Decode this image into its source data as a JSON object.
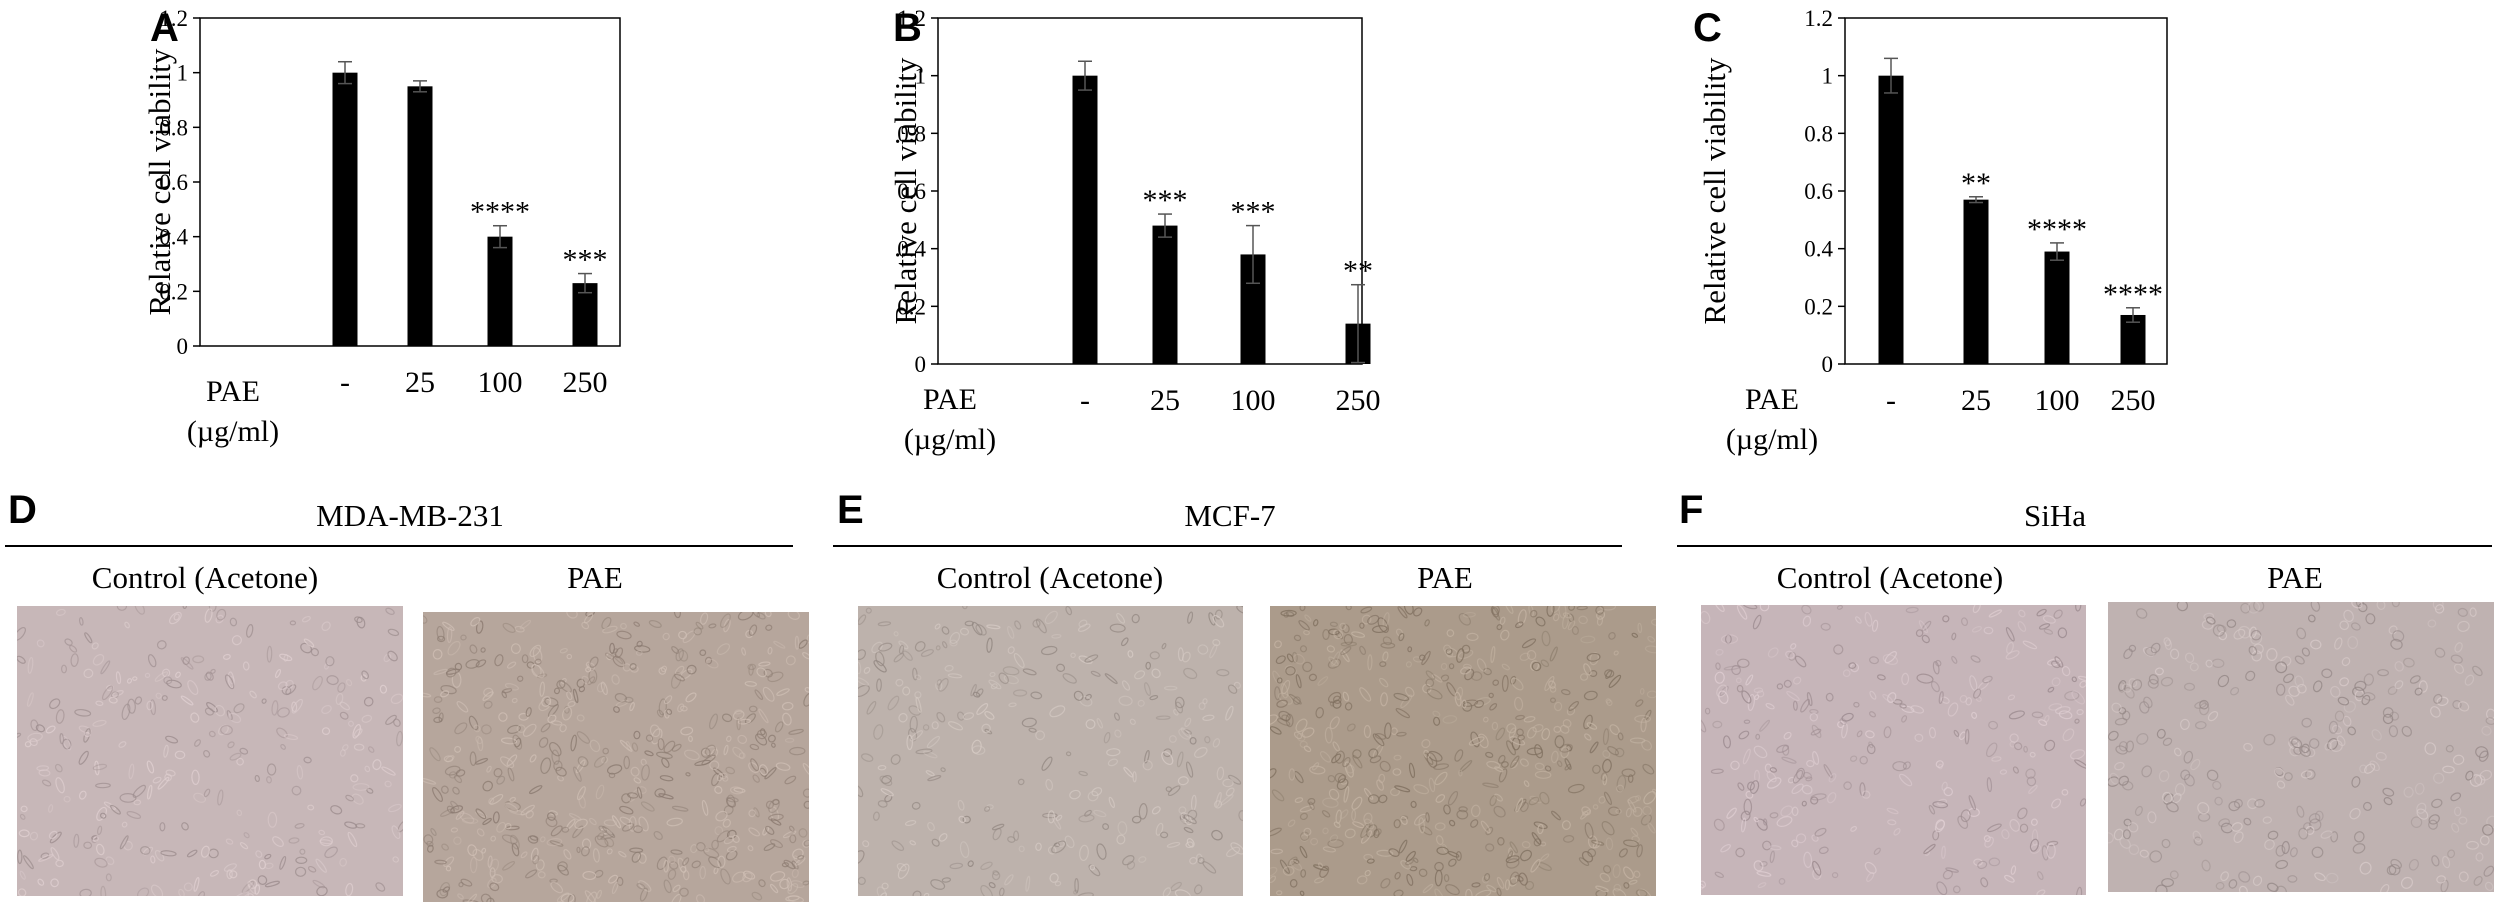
{
  "panel_letters": {
    "a": "A",
    "b": "B",
    "c": "C",
    "d": "D",
    "e": "E",
    "f": "F"
  },
  "x_axis_header": {
    "label": "PAE",
    "unit": "(µg/ml)"
  },
  "chart_data": [
    {
      "type": "bar",
      "panel": "A",
      "categories": [
        "-",
        "25",
        "100",
        "250"
      ],
      "values": [
        1.0,
        0.95,
        0.4,
        0.23
      ],
      "errors": [
        0.04,
        0.02,
        0.04,
        0.035
      ],
      "significance": [
        "",
        "",
        "****",
        "***"
      ],
      "ylabel": "Relative cell viability",
      "xlabel": "PAE (µg/ml)",
      "ylim": [
        0,
        1.2
      ],
      "yticks": [
        0,
        0.2,
        0.4,
        0.6,
        0.8,
        1,
        1.2
      ],
      "ytick_labels": [
        "0",
        "0.2",
        "0.4",
        "0.6",
        "0.8",
        "1",
        "1.2"
      ],
      "bar_color": "#000000",
      "grid": false
    },
    {
      "type": "bar",
      "panel": "B",
      "categories": [
        "-",
        "25",
        "100",
        "250"
      ],
      "values": [
        1.0,
        0.48,
        0.38,
        0.14
      ],
      "errors": [
        0.05,
        0.04,
        0.1,
        0.135
      ],
      "significance": [
        "",
        "***",
        "***",
        "**"
      ],
      "ylabel": "Relative cell viability",
      "xlabel": "PAE (µg/ml)",
      "ylim": [
        0,
        1.2
      ],
      "yticks": [
        0,
        0.2,
        0.4,
        0.6,
        0.8,
        1,
        1.2
      ],
      "ytick_labels": [
        "0",
        "0.2",
        "0.4",
        "0.6",
        "0.8",
        "1",
        "1.2"
      ],
      "bar_color": "#000000",
      "grid": false
    },
    {
      "type": "bar",
      "panel": "C",
      "categories": [
        "-",
        "25",
        "100",
        "250"
      ],
      "values": [
        1.0,
        0.57,
        0.39,
        0.17
      ],
      "errors": [
        0.06,
        0.01,
        0.03,
        0.025
      ],
      "significance": [
        "",
        "**",
        "****",
        "****"
      ],
      "ylabel": "Relative cell viability",
      "xlabel": "PAE (µg/ml)",
      "ylim": [
        0,
        1.2
      ],
      "yticks": [
        0,
        0.2,
        0.4,
        0.6,
        0.8,
        1,
        1.2
      ],
      "ytick_labels": [
        "0",
        "0.2",
        "0.4",
        "0.6",
        "0.8",
        "1",
        "1.2"
      ],
      "bar_color": "#000000",
      "grid": false
    }
  ],
  "micrographs": {
    "d": {
      "cell_line": "MDA-MB-231",
      "left_label": "Control (Acetone)",
      "right_label": "PAE",
      "left_color": "#c7b7b8",
      "right_color": "#b6a69c"
    },
    "e": {
      "cell_line": "MCF-7",
      "left_label": "Control (Acetone)",
      "right_label": "PAE",
      "left_color": "#bdb2ac",
      "right_color": "#ab9b8b"
    },
    "f": {
      "cell_line": "SiHa",
      "left_label": "Control (Acetone)",
      "right_label": "PAE",
      "left_color": "#c6b5b9",
      "right_color": "#bfb2b1"
    }
  }
}
